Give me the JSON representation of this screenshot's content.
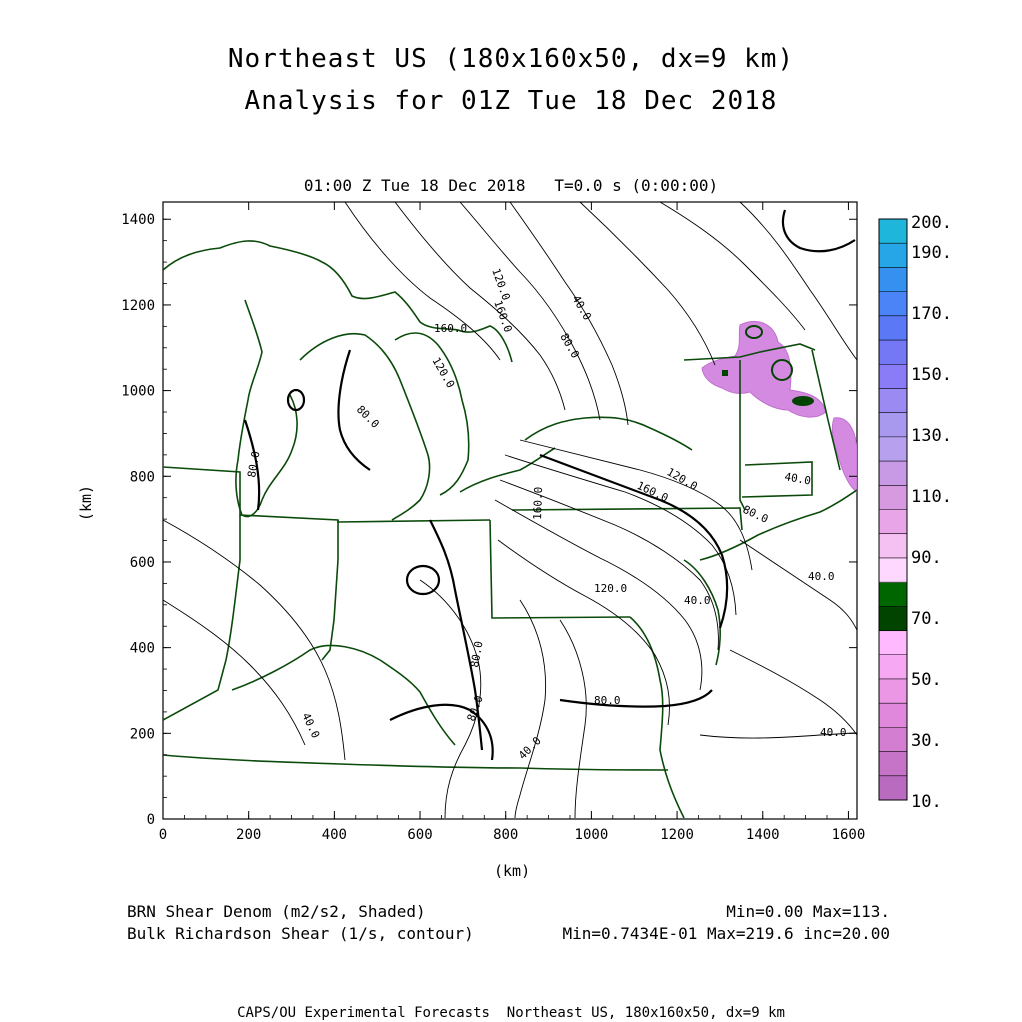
{
  "title_line1": "Northeast US (180x160x50, dx=9 km)",
  "title_line2": "Analysis for 01Z Tue 18 Dec 2018",
  "valid_time": "01:00 Z Tue 18 Dec 2018   T=0.0 s (0:00:00)",
  "axes": {
    "x_label": "(km)",
    "y_label": "(km)",
    "x_ticks": [
      "0",
      "200",
      "400",
      "600",
      "800",
      "1000",
      "1200",
      "1400",
      "1600"
    ],
    "y_ticks": [
      "0",
      "200",
      "400",
      "600",
      "800",
      "1000",
      "1200",
      "1400"
    ]
  },
  "colorbar": {
    "labels": [
      "200.",
      "190.",
      "170.",
      "150.",
      "130.",
      "110.",
      "90.",
      "70.",
      "50.",
      "30.",
      "10."
    ],
    "colors": [
      "#b96bc0",
      "#c674c8",
      "#d47ed2",
      "#e089dc",
      "#ec97e6",
      "#f6a8f2",
      "#ffb9ff",
      "#004400",
      "#006600",
      "#ffd8ff",
      "#f5c0f2",
      "#e8a6e8",
      "#d79ae0",
      "#c89ae6",
      "#b7a0ee",
      "#a898ee",
      "#9a8af2",
      "#8a7cf6",
      "#7478f4",
      "#5b78f6",
      "#4a84f6",
      "#3590f0",
      "#26a6e6",
      "#1fb6dc"
    ]
  },
  "contour_labels": [
    "120.0",
    "160.0",
    "40.0",
    "80.0",
    "160.0",
    "120.0",
    "80.0",
    "80.0",
    "40.0",
    "120.0",
    "160.0",
    "160.0",
    "80.0",
    "120.0",
    "80.0",
    "80.0",
    "40.0",
    "80.0",
    "40.0",
    "40.0",
    "40.0",
    "40.0"
  ],
  "footer": {
    "shaded_name": "BRN Shear Denom (m2/s2, Shaded)",
    "shaded_stats": "Min=0.00 Max=113.",
    "contour_name": "Bulk Richardson Shear (1/s, contour)",
    "contour_stats": "Min=0.7434E-01 Max=219.6 inc=20.00",
    "credit": "CAPS/OU Experimental Forecasts  Northeast US, 180x160x50, dx=9 km"
  }
}
